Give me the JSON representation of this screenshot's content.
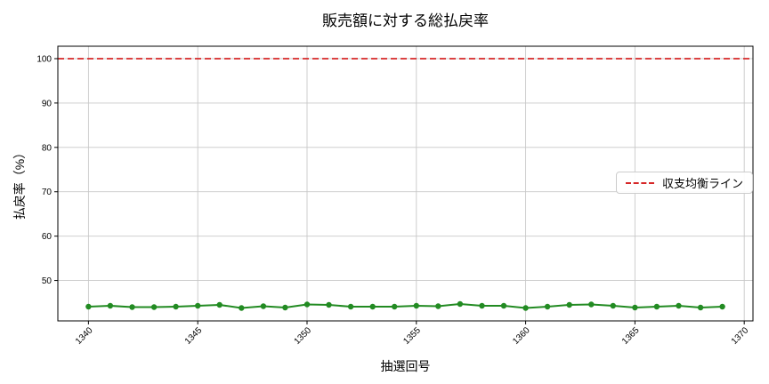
{
  "chart_data": {
    "type": "line",
    "title": "販売額に対する総払戻率",
    "xlabel": "抽選回号",
    "ylabel": "払戻率（%）",
    "x": [
      1340,
      1341,
      1342,
      1343,
      1344,
      1345,
      1346,
      1347,
      1348,
      1349,
      1350,
      1351,
      1352,
      1353,
      1354,
      1355,
      1356,
      1357,
      1358,
      1359,
      1360,
      1361,
      1362,
      1363,
      1364,
      1365,
      1366,
      1367,
      1368,
      1369
    ],
    "values": [
      44.1,
      44.3,
      44.0,
      44.0,
      44.1,
      44.3,
      44.5,
      43.8,
      44.2,
      43.9,
      44.6,
      44.5,
      44.1,
      44.1,
      44.1,
      44.3,
      44.2,
      44.7,
      44.3,
      44.3,
      43.8,
      44.1,
      44.5,
      44.6,
      44.3,
      43.9,
      44.1,
      44.3,
      43.9,
      44.1
    ],
    "line_color": "#228B22",
    "marker": "circle",
    "reference_line": {
      "label": "収支均衡ライン",
      "value": 100,
      "color": "#d62728",
      "style": "dashed"
    },
    "xlim": [
      1338.6,
      1370.4
    ],
    "ylim": [
      40.9,
      102.8
    ],
    "xticks": [
      1340,
      1345,
      1350,
      1355,
      1360,
      1365,
      1370
    ],
    "yticks": [
      50,
      60,
      70,
      80,
      90,
      100
    ],
    "grid": true,
    "grid_color": "#c8c8c8",
    "spine_color": "#000000",
    "legend_position": "right-middle",
    "background": "#ffffff"
  }
}
